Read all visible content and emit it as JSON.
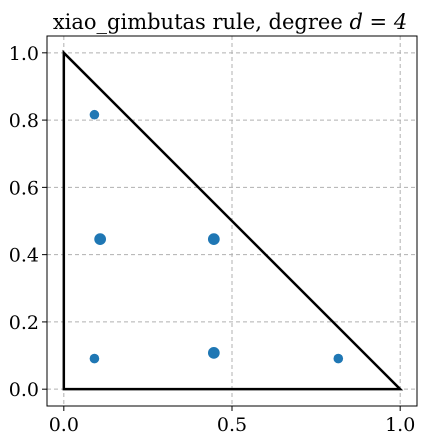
{
  "chart_data": {
    "type": "scatter",
    "title_text": "xiao_gimbutas rule, degree ",
    "title_math": "d = 4",
    "xlim": [
      -0.05,
      1.05
    ],
    "ylim": [
      -0.05,
      1.05
    ],
    "xticks": [
      0.0,
      0.5,
      1.0
    ],
    "xtick_labels": [
      "0.0",
      "0.5",
      "1.0"
    ],
    "yticks": [
      0.0,
      0.2,
      0.4,
      0.6,
      0.8,
      1.0
    ],
    "ytick_labels": [
      "0.0",
      "0.2",
      "0.4",
      "0.6",
      "0.8",
      "1.0"
    ],
    "grid": true,
    "triangle": [
      [
        0,
        0
      ],
      [
        1,
        0
      ],
      [
        0,
        1
      ]
    ],
    "triangle_color": "#000000",
    "point_color": "#1f77b4",
    "points": [
      {
        "x": 0.091,
        "y": 0.816,
        "weight": 0.11
      },
      {
        "x": 0.108,
        "y": 0.446,
        "weight": 0.22
      },
      {
        "x": 0.446,
        "y": 0.446,
        "weight": 0.22
      },
      {
        "x": 0.091,
        "y": 0.091,
        "weight": 0.11
      },
      {
        "x": 0.446,
        "y": 0.108,
        "weight": 0.22
      },
      {
        "x": 0.816,
        "y": 0.091,
        "weight": 0.11
      }
    ]
  }
}
